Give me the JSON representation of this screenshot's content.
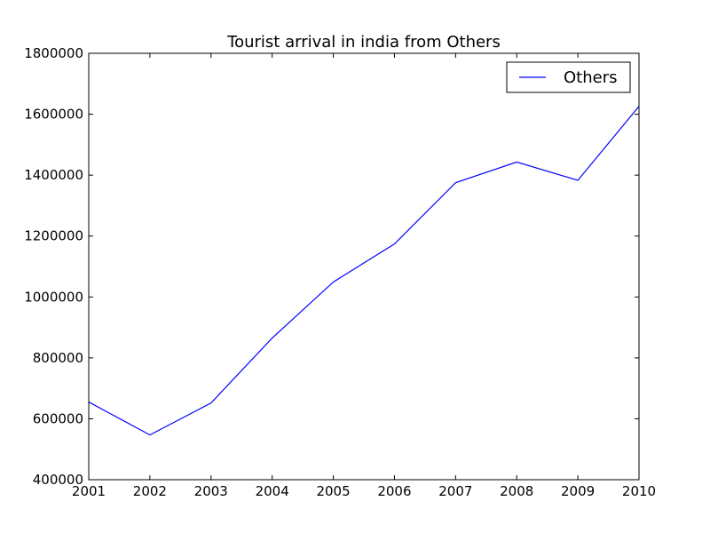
{
  "chart_data": {
    "type": "line",
    "title": "Tourist arrival in india from Others",
    "xlabel": "",
    "ylabel": "",
    "x": [
      2001,
      2002,
      2003,
      2004,
      2005,
      2006,
      2007,
      2008,
      2009,
      2010
    ],
    "series": [
      {
        "name": "Others",
        "color": "#0000ff",
        "values": [
          655000,
          547000,
          652000,
          865000,
          1049000,
          1174000,
          1375000,
          1443000,
          1383000,
          1626000
        ]
      }
    ],
    "xlim": [
      2001,
      2010
    ],
    "ylim": [
      400000,
      1800000
    ],
    "xticks": [
      "2001",
      "2002",
      "2003",
      "2004",
      "2005",
      "2006",
      "2007",
      "2008",
      "2009",
      "2010"
    ],
    "yticks": [
      "400000",
      "600000",
      "800000",
      "1000000",
      "1200000",
      "1400000",
      "1600000",
      "1800000"
    ],
    "grid": false,
    "legend_position": "top-right"
  }
}
